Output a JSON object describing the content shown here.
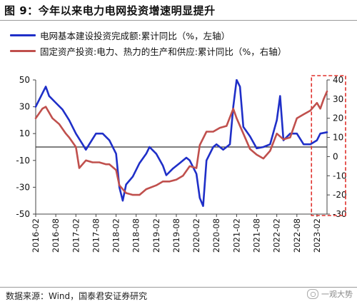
{
  "figure": {
    "title": "图 9：今年以来电力电网投资增速明显提升",
    "source": "数据来源：Wind，国泰君安证券研究",
    "watermark": "一观大势"
  },
  "colors": {
    "series_blue": "#1f2fc8",
    "series_red": "#c0504d",
    "highlight_box": "#e0302b",
    "axis": "#444444"
  },
  "chart_data": {
    "type": "line",
    "title": "",
    "legend_position": "top-left",
    "grid": false,
    "x_ticks": [
      "2016-02",
      "2016-08",
      "2017-02",
      "2017-08",
      "2018-02",
      "2018-08",
      "2019-02",
      "2019-08",
      "2020-02",
      "2020-08",
      "2021-02",
      "2021-08",
      "2022-02",
      "2022-08",
      "2023-02"
    ],
    "x_range": [
      "2016-02",
      "2023-05"
    ],
    "y_left": {
      "range": [
        -50,
        50
      ],
      "ticks": [
        50,
        30,
        10,
        -10,
        -30,
        -50
      ]
    },
    "y_right": {
      "range": [
        -30,
        40
      ],
      "ticks": [
        40,
        30,
        20,
        10,
        0,
        -10,
        -20,
        -30
      ]
    },
    "highlight": {
      "from": "2023-01",
      "to": "2023-05"
    },
    "series": [
      {
        "name": "电网基本建设投资完成额:累计同比（%，左轴）",
        "axis": "left",
        "points": [
          [
            "2016-02",
            30
          ],
          [
            "2016-04",
            40
          ],
          [
            "2016-05",
            45
          ],
          [
            "2016-06",
            38
          ],
          [
            "2016-08",
            33
          ],
          [
            "2016-10",
            28
          ],
          [
            "2016-12",
            20
          ],
          [
            "2017-02",
            10
          ],
          [
            "2017-04",
            2
          ],
          [
            "2017-05",
            -2
          ],
          [
            "2017-06",
            2
          ],
          [
            "2017-08",
            10
          ],
          [
            "2017-10",
            10
          ],
          [
            "2017-12",
            5
          ],
          [
            "2018-02",
            -5
          ],
          [
            "2018-03",
            -30
          ],
          [
            "2018-04",
            -40
          ],
          [
            "2018-05",
            -28
          ],
          [
            "2018-07",
            -22
          ],
          [
            "2018-09",
            -12
          ],
          [
            "2018-11",
            -5
          ],
          [
            "2018-12",
            0
          ],
          [
            "2019-02",
            -5
          ],
          [
            "2019-04",
            -14
          ],
          [
            "2019-05",
            -21
          ],
          [
            "2019-07",
            -16
          ],
          [
            "2019-09",
            -12
          ],
          [
            "2019-11",
            -8
          ],
          [
            "2019-12",
            -10
          ],
          [
            "2020-02",
            -20
          ],
          [
            "2020-03",
            -38
          ],
          [
            "2020-04",
            -44
          ],
          [
            "2020-05",
            -10
          ],
          [
            "2020-07",
            0
          ],
          [
            "2020-08",
            2
          ],
          [
            "2020-10",
            -2
          ],
          [
            "2020-12",
            2
          ],
          [
            "2021-01",
            30
          ],
          [
            "2021-02",
            50
          ],
          [
            "2021-03",
            45
          ],
          [
            "2021-04",
            15
          ],
          [
            "2021-06",
            8
          ],
          [
            "2021-08",
            -1
          ],
          [
            "2021-10",
            0
          ],
          [
            "2021-12",
            2
          ],
          [
            "2022-02",
            20
          ],
          [
            "2022-03",
            38
          ],
          [
            "2022-04",
            5
          ],
          [
            "2022-06",
            10
          ],
          [
            "2022-08",
            10
          ],
          [
            "2022-10",
            2
          ],
          [
            "2022-12",
            2
          ],
          [
            "2023-02",
            5
          ],
          [
            "2023-03",
            10
          ],
          [
            "2023-05",
            11
          ]
        ]
      },
      {
        "name": "固定资产投资:电力、热力的生产和供应:累计同比（%，右轴）",
        "axis": "right",
        "points": [
          [
            "2016-02",
            20
          ],
          [
            "2016-04",
            25
          ],
          [
            "2016-05",
            26
          ],
          [
            "2016-07",
            20
          ],
          [
            "2016-09",
            17
          ],
          [
            "2016-11",
            12
          ],
          [
            "2016-12",
            10
          ],
          [
            "2017-02",
            5
          ],
          [
            "2017-03",
            -6
          ],
          [
            "2017-05",
            -2
          ],
          [
            "2017-07",
            -3
          ],
          [
            "2017-09",
            -3
          ],
          [
            "2017-11",
            -4
          ],
          [
            "2017-12",
            -4
          ],
          [
            "2018-02",
            -7
          ],
          [
            "2018-03",
            -15
          ],
          [
            "2018-05",
            -19
          ],
          [
            "2018-07",
            -20
          ],
          [
            "2018-09",
            -20
          ],
          [
            "2018-11",
            -17
          ],
          [
            "2019-02",
            -15
          ],
          [
            "2019-04",
            -13
          ],
          [
            "2019-06",
            -13
          ],
          [
            "2019-08",
            -12
          ],
          [
            "2019-10",
            -10
          ],
          [
            "2019-12",
            -5
          ],
          [
            "2020-02",
            -6
          ],
          [
            "2020-03",
            6
          ],
          [
            "2020-05",
            13
          ],
          [
            "2020-07",
            13
          ],
          [
            "2020-09",
            15
          ],
          [
            "2020-11",
            16
          ],
          [
            "2021-01",
            25
          ],
          [
            "2021-02",
            20
          ],
          [
            "2021-04",
            12
          ],
          [
            "2021-06",
            4
          ],
          [
            "2021-08",
            1
          ],
          [
            "2021-10",
            -1
          ],
          [
            "2021-12",
            3
          ],
          [
            "2022-02",
            12
          ],
          [
            "2022-04",
            9
          ],
          [
            "2022-06",
            10
          ],
          [
            "2022-08",
            20
          ],
          [
            "2022-10",
            22
          ],
          [
            "2022-12",
            24
          ],
          [
            "2023-02",
            28
          ],
          [
            "2023-03",
            25
          ],
          [
            "2023-04",
            30
          ],
          [
            "2023-05",
            34
          ]
        ]
      }
    ]
  }
}
